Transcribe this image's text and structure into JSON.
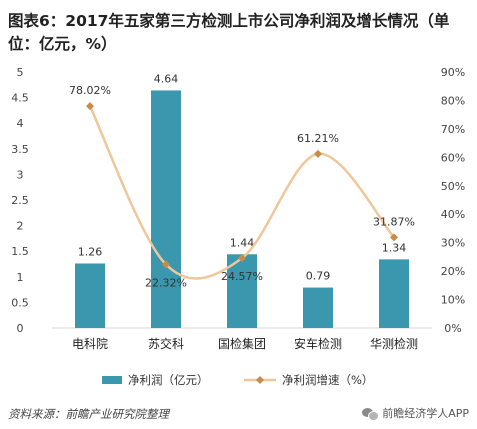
{
  "title": "图表6：2017年五家第三方检测上市公司净利润及增长情况（单位：亿元，%）",
  "source": "资料来源：前瞻产业研究院整理",
  "brand": "前瞻经济学人APP",
  "colors": {
    "bar": "#3a97ad",
    "line": "#eec79a",
    "marker": "#c98a4a",
    "axis": "#d9d9d9"
  },
  "chart_data": {
    "type": "bar",
    "categories": [
      "电科院",
      "苏交科",
      "国检集团",
      "安车检测",
      "华测检测"
    ],
    "series": [
      {
        "name": "净利润（亿元）",
        "type": "bar",
        "axis": "left",
        "values": [
          1.26,
          4.64,
          1.44,
          0.79,
          1.34
        ],
        "labels": [
          "1.26",
          "4.64",
          "1.44",
          "0.79",
          "1.34"
        ]
      },
      {
        "name": "净利润增速（%）",
        "type": "line",
        "smooth": true,
        "axis": "right",
        "values": [
          78.02,
          22.32,
          24.57,
          61.21,
          31.87
        ],
        "labels": [
          "78.02%",
          "22.32%",
          "24.57%",
          "61.21%",
          "31.87%"
        ]
      }
    ],
    "y_left": {
      "range": [
        0,
        5
      ],
      "ticks": [
        0,
        0.5,
        1,
        1.5,
        2,
        2.5,
        3,
        3.5,
        4,
        4.5,
        5
      ],
      "tick_labels": [
        "0",
        "0.5",
        "1",
        "1.5",
        "2",
        "2.5",
        "3",
        "3.5",
        "4",
        "4.5",
        "5"
      ]
    },
    "y_right": {
      "range": [
        0,
        90
      ],
      "ticks": [
        0,
        10,
        20,
        30,
        40,
        50,
        60,
        70,
        80,
        90
      ],
      "tick_labels": [
        "0%",
        "10%",
        "20%",
        "30%",
        "40%",
        "50%",
        "60%",
        "70%",
        "80%",
        "90%"
      ]
    },
    "grid": false,
    "legend": "bottom"
  }
}
